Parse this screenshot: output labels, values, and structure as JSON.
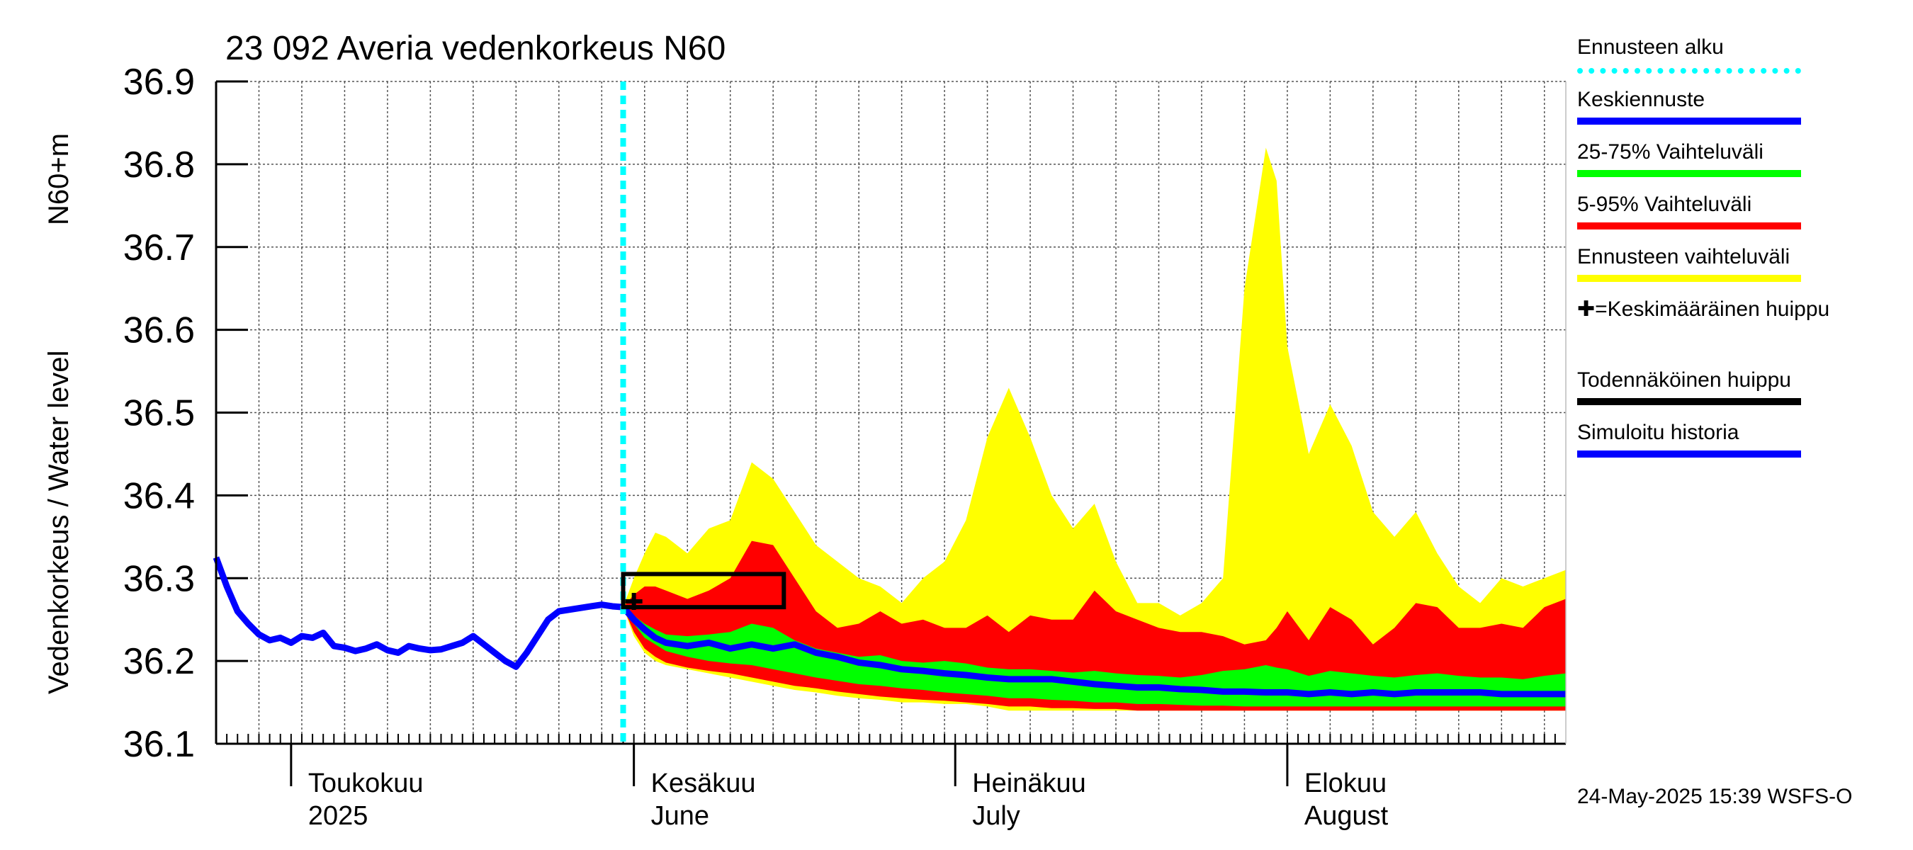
{
  "chart_data": {
    "type": "area",
    "title": "23 092 Averia vedenkorkeus N60",
    "ylabel_main": "Vedenkorkeus / Water level",
    "ylabel_unit": "N60+m",
    "ylim": [
      36.1,
      36.9
    ],
    "yticks": [
      "36.1",
      "36.2",
      "36.3",
      "36.4",
      "36.5",
      "36.6",
      "36.7",
      "36.8",
      "36.9"
    ],
    "grid": true,
    "x_day_range": [
      0,
      126
    ],
    "forecast_start_day": 38,
    "month_labels": [
      {
        "fi": "Toukokuu",
        "en": "2025",
        "day": 7
      },
      {
        "fi": "Kesäkuu",
        "en": "June",
        "day": 39
      },
      {
        "fi": "Heinäkuu",
        "en": "July",
        "day": 69
      },
      {
        "fi": "Elokuu",
        "en": "August",
        "day": 100
      }
    ],
    "simulated_history": {
      "name": "Simuloitu historia",
      "x": [
        0,
        1,
        2,
        3,
        4,
        5,
        6,
        7,
        8,
        9,
        10,
        11,
        12,
        13,
        14,
        15,
        16,
        17,
        18,
        19,
        20,
        21,
        22,
        23,
        24,
        25,
        26,
        27,
        28,
        29,
        30,
        31,
        32,
        33,
        34,
        35,
        36,
        37,
        38
      ],
      "values": [
        36.325,
        36.29,
        36.26,
        36.245,
        36.232,
        36.225,
        36.228,
        36.222,
        36.23,
        36.228,
        36.234,
        36.218,
        36.216,
        36.212,
        36.215,
        36.22,
        36.213,
        36.21,
        36.218,
        36.215,
        36.213,
        36.214,
        36.218,
        36.222,
        36.23,
        36.22,
        36.21,
        36.2,
        36.193,
        36.21,
        36.23,
        36.25,
        36.26,
        36.262,
        36.264,
        36.266,
        36.268,
        36.266,
        36.265
      ]
    },
    "forecast_x": [
      38,
      39,
      40,
      41,
      42,
      44,
      46,
      48,
      50,
      52,
      54,
      56,
      58,
      60,
      62,
      64,
      66,
      68,
      70,
      72,
      74,
      76,
      78,
      80,
      82,
      84,
      86,
      88,
      90,
      92,
      94,
      96,
      98,
      99,
      100,
      102,
      104,
      106,
      108,
      110,
      112,
      114,
      116,
      118,
      120,
      122,
      124,
      126
    ],
    "series": [
      {
        "name": "Ennusteen vaihteluväli",
        "color": "#ffff00",
        "upper": [
          36.265,
          36.3,
          36.33,
          36.355,
          36.35,
          36.33,
          36.36,
          36.37,
          36.44,
          36.42,
          36.38,
          36.34,
          36.32,
          36.3,
          36.29,
          36.27,
          36.3,
          36.32,
          36.37,
          36.47,
          36.53,
          36.47,
          36.4,
          36.36,
          36.39,
          36.32,
          36.27,
          36.27,
          36.255,
          36.27,
          36.3,
          36.65,
          36.82,
          36.78,
          36.58,
          36.45,
          36.51,
          36.46,
          36.38,
          36.35,
          36.38,
          36.33,
          36.29,
          36.27,
          36.3,
          36.29,
          36.3,
          36.31
        ],
        "lower": [
          36.265,
          36.23,
          36.21,
          36.2,
          36.195,
          36.19,
          36.185,
          36.18,
          36.175,
          36.17,
          36.165,
          36.162,
          36.158,
          36.155,
          36.153,
          36.15,
          36.15,
          36.148,
          36.148,
          36.145,
          36.14,
          36.14,
          36.14,
          36.14,
          36.14,
          36.14,
          36.14,
          36.14,
          36.14,
          36.14,
          36.14,
          36.14,
          36.14,
          36.14,
          36.14,
          36.14,
          36.14,
          36.14,
          36.14,
          36.14,
          36.14,
          36.14,
          36.14,
          36.14,
          36.14,
          36.14,
          36.14,
          36.14
        ]
      },
      {
        "name": "5-95% Vaihteluväli",
        "color": "#ff0000",
        "upper": [
          36.265,
          36.28,
          36.29,
          36.29,
          36.285,
          36.275,
          36.285,
          36.3,
          36.345,
          36.34,
          36.3,
          36.26,
          36.24,
          36.245,
          36.26,
          36.245,
          36.25,
          36.24,
          36.24,
          36.255,
          36.235,
          36.255,
          36.25,
          36.25,
          36.285,
          36.26,
          36.25,
          36.24,
          36.235,
          36.235,
          36.23,
          36.22,
          36.225,
          36.24,
          36.26,
          36.225,
          36.265,
          36.25,
          36.22,
          36.24,
          36.27,
          36.265,
          36.24,
          36.24,
          36.245,
          36.24,
          36.265,
          36.275
        ],
        "lower": [
          36.265,
          36.235,
          36.215,
          36.205,
          36.198,
          36.192,
          36.188,
          36.185,
          36.18,
          36.175,
          36.17,
          36.167,
          36.163,
          36.16,
          36.157,
          36.155,
          36.153,
          36.152,
          36.15,
          36.148,
          36.145,
          36.145,
          36.143,
          36.143,
          36.142,
          36.142,
          36.14,
          36.14,
          36.14,
          36.14,
          36.14,
          36.14,
          36.14,
          36.14,
          36.14,
          36.14,
          36.14,
          36.14,
          36.14,
          36.14,
          36.14,
          36.14,
          36.14,
          36.14,
          36.14,
          36.14,
          36.14,
          36.14
        ]
      },
      {
        "name": "25-75% Vaihteluväli",
        "color": "#00ff00",
        "upper": [
          36.265,
          36.255,
          36.245,
          36.238,
          36.232,
          36.23,
          36.232,
          36.235,
          36.245,
          36.24,
          36.225,
          36.215,
          36.21,
          36.205,
          36.207,
          36.2,
          36.198,
          36.2,
          36.197,
          36.192,
          36.19,
          36.19,
          36.188,
          36.186,
          36.188,
          36.185,
          36.183,
          36.182,
          36.18,
          36.183,
          36.188,
          36.19,
          36.195,
          36.192,
          36.19,
          36.182,
          36.188,
          36.185,
          36.182,
          36.18,
          36.183,
          36.185,
          36.182,
          36.18,
          36.18,
          36.178,
          36.182,
          36.185
        ],
        "lower": [
          36.265,
          36.245,
          36.228,
          36.22,
          36.212,
          36.205,
          36.2,
          36.197,
          36.195,
          36.19,
          36.185,
          36.18,
          36.176,
          36.172,
          36.17,
          36.167,
          36.165,
          36.162,
          36.16,
          36.158,
          36.155,
          36.155,
          36.153,
          36.152,
          36.15,
          36.15,
          36.148,
          36.148,
          36.147,
          36.146,
          36.146,
          36.145,
          36.145,
          36.145,
          36.145,
          36.145,
          36.145,
          36.145,
          36.145,
          36.145,
          36.145,
          36.145,
          36.145,
          36.145,
          36.145,
          36.145,
          36.145,
          36.145
        ]
      },
      {
        "name": "Keskiennuste",
        "color": "#0000ff",
        "values": [
          36.265,
          36.25,
          36.238,
          36.228,
          36.222,
          36.218,
          36.222,
          36.215,
          36.22,
          36.215,
          36.22,
          36.21,
          36.205,
          36.198,
          36.195,
          36.19,
          36.188,
          36.185,
          36.183,
          36.18,
          36.178,
          36.178,
          36.178,
          36.175,
          36.172,
          36.17,
          36.168,
          36.168,
          36.166,
          36.165,
          36.163,
          36.163,
          36.162,
          36.162,
          36.162,
          36.16,
          36.162,
          36.16,
          36.162,
          36.16,
          36.162,
          36.162,
          36.162,
          36.162,
          36.16,
          36.16,
          36.16,
          36.16
        ]
      }
    ],
    "probable_peak": {
      "name": "Todennäköinen huippu",
      "x_range": [
        38,
        53
      ],
      "y_range": [
        36.265,
        36.305
      ]
    },
    "mean_peak": {
      "x": 39,
      "y": 36.272
    }
  },
  "legend": [
    {
      "label": "Ennusteen alku",
      "color": "#00ffff",
      "style": "dotted"
    },
    {
      "label": "Keskiennuste",
      "color": "#0000ff",
      "style": "solid"
    },
    {
      "label": "25-75% Vaihteluväli",
      "color": "#00ff00",
      "style": "solid"
    },
    {
      "label": "5-95% Vaihteluväli",
      "color": "#ff0000",
      "style": "solid"
    },
    {
      "label": "Ennusteen vaihteluväli",
      "color": "#ffff00",
      "style": "solid"
    },
    {
      "label": "✚=Keskimääräinen huippu",
      "color": "",
      "style": "none"
    },
    {
      "label": "Todennäköinen huippu",
      "color": "#000000",
      "style": "solid"
    },
    {
      "label": "Simuloitu historia",
      "color": "#0000ff",
      "style": "solid"
    }
  ],
  "timestamp": "24-May-2025 15:39 WSFS-O"
}
